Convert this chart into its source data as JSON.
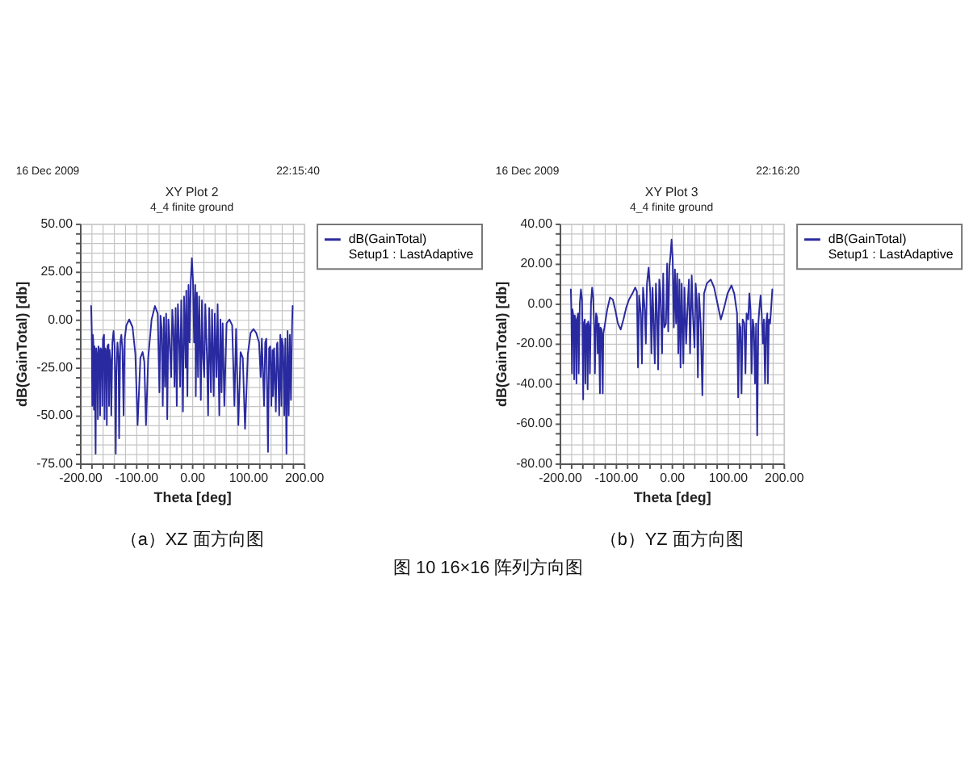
{
  "chart_data": [
    {
      "type": "line",
      "title": "XY Plot 2",
      "subtitle": "4_4 finite ground",
      "xlabel": "Theta [deg]",
      "ylabel": "dB(GainTotal) [db]",
      "annotations": [
        "16 Dec 2009",
        "22:15:40",
        "（a）XZ 面方向图",
        "图 10 16×16 阵列方向图"
      ],
      "series": [
        {
          "name": "dB(GainTotal)\nSetup1 : LastAdaptive",
          "color": "#2a2aa0",
          "x": [
            -180,
            -179,
            -178,
            -177,
            -176,
            -175,
            -174,
            -172,
            -171,
            -169,
            -168,
            -167,
            -165,
            -164,
            -163,
            -161,
            -160,
            -159,
            -157,
            -156,
            -155,
            -153,
            -152,
            -151,
            -149,
            -148,
            -147,
            -145,
            -144,
            -142,
            -140,
            -138,
            -137,
            -136,
            -135,
            -133,
            -131,
            -130,
            -128,
            -126,
            -124,
            -122,
            -120,
            -117,
            -112,
            -106,
            -101,
            -97,
            -92,
            -88,
            -85,
            -82,
            -78,
            -72,
            -66,
            -61,
            -58,
            -56,
            -54,
            -52,
            -50,
            -48,
            -46,
            -44,
            -42,
            -40,
            -37,
            -35,
            -33,
            -31,
            -29,
            -27,
            -25,
            -23,
            -21,
            -19,
            -16,
            -14,
            -11,
            -10,
            -8,
            -6,
            -4,
            -2,
            0,
            2,
            4,
            6,
            7,
            9,
            11,
            13,
            16,
            18,
            20,
            22,
            24,
            27,
            29,
            31,
            34,
            36,
            39,
            41,
            44,
            46,
            49,
            51,
            53,
            55,
            58,
            62,
            67,
            72,
            76,
            79,
            83,
            87,
            91,
            95,
            100,
            105,
            110,
            115,
            120,
            123,
            125,
            129,
            131,
            133,
            136,
            138,
            140,
            142,
            144,
            145,
            147,
            150,
            152,
            153,
            156,
            158,
            160,
            161,
            163,
            165,
            167,
            169,
            171,
            173,
            175,
            177,
            179,
            180
          ],
          "values": [
            7,
            -5,
            -45,
            -8,
            -12,
            -47,
            -14,
            -70,
            -15,
            -20,
            -52,
            -14,
            -18,
            -50,
            -15,
            -17,
            -45,
            -10,
            -8,
            -52,
            -15,
            -17,
            -55,
            -14,
            -13,
            -45,
            -16,
            -22,
            -50,
            -12,
            -6,
            -14,
            -40,
            -70,
            -30,
            -12,
            -20,
            -62,
            -12,
            -8,
            -16,
            -50,
            -10,
            -3,
            0,
            -4,
            -18,
            -55,
            -20,
            -17,
            -22,
            -55,
            -20,
            0,
            7,
            3,
            -38,
            2,
            -5,
            -45,
            1,
            -35,
            3,
            -52,
            0,
            -10,
            -30,
            5,
            -5,
            -35,
            6,
            -45,
            8,
            -10,
            -35,
            10,
            -48,
            12,
            -25,
            15,
            -40,
            18,
            -12,
            20,
            32,
            20,
            -12,
            18,
            -40,
            14,
            -30,
            12,
            -42,
            10,
            -20,
            -30,
            8,
            -20,
            -50,
            6,
            -38,
            5,
            -40,
            3,
            -30,
            8,
            -50,
            0,
            -38,
            -2,
            -45,
            -2,
            0,
            -3,
            -45,
            -5,
            -55,
            -17,
            -20,
            -57,
            -18,
            -7,
            -5,
            -7,
            -12,
            -30,
            -10,
            -45,
            -12,
            -10,
            -69,
            -15,
            -14,
            -45,
            -16,
            -40,
            -15,
            -48,
            -13,
            -12,
            -50,
            -8,
            -45,
            -10,
            -14,
            -50,
            -10,
            -70,
            -6,
            -50,
            -8,
            -42,
            -3,
            7
          ]
        }
      ],
      "xlim": [
        -200,
        200
      ],
      "xticks": [
        {
          "value": -200,
          "label": "-200.00"
        },
        {
          "value": -180,
          "label": null
        },
        {
          "value": -160,
          "label": null
        },
        {
          "value": -140,
          "label": null
        },
        {
          "value": -120,
          "label": null
        },
        {
          "value": -100,
          "label": "-100.00"
        },
        {
          "value": -80,
          "label": null
        },
        {
          "value": -60,
          "label": null
        },
        {
          "value": -40,
          "label": null
        },
        {
          "value": -20,
          "label": null
        },
        {
          "value": 0,
          "label": "0.00"
        },
        {
          "value": 20,
          "label": null
        },
        {
          "value": 40,
          "label": null
        },
        {
          "value": 60,
          "label": null
        },
        {
          "value": 80,
          "label": null
        },
        {
          "value": 100,
          "label": "100.00"
        },
        {
          "value": 120,
          "label": null
        },
        {
          "value": 140,
          "label": null
        },
        {
          "value": 160,
          "label": null
        },
        {
          "value": 180,
          "label": null
        },
        {
          "value": 200,
          "label": "200.00"
        }
      ],
      "ylim": [
        -75,
        50
      ],
      "yticks": [
        {
          "value": -75,
          "label": "-75.00"
        },
        {
          "value": -70,
          "label": null
        },
        {
          "value": -65,
          "label": null
        },
        {
          "value": -60,
          "label": null
        },
        {
          "value": -55,
          "label": null
        },
        {
          "value": -50,
          "label": "-50.00"
        },
        {
          "value": -45,
          "label": null
        },
        {
          "value": -40,
          "label": null
        },
        {
          "value": -35,
          "label": null
        },
        {
          "value": -30,
          "label": null
        },
        {
          "value": -25,
          "label": "-25.00"
        },
        {
          "value": -20,
          "label": null
        },
        {
          "value": -15,
          "label": null
        },
        {
          "value": -10,
          "label": null
        },
        {
          "value": -5,
          "label": null
        },
        {
          "value": 0,
          "label": "0.00"
        },
        {
          "value": 5,
          "label": null
        },
        {
          "value": 10,
          "label": null
        },
        {
          "value": 15,
          "label": null
        },
        {
          "value": 20,
          "label": null
        },
        {
          "value": 25,
          "label": "25.00"
        },
        {
          "value": 30,
          "label": null
        },
        {
          "value": 35,
          "label": null
        },
        {
          "value": 40,
          "label": null
        },
        {
          "value": 45,
          "label": null
        },
        {
          "value": 50,
          "label": "50.00"
        }
      ],
      "grid": true,
      "legend": "right"
    },
    {
      "type": "line",
      "title": "XY Plot 3",
      "subtitle": "4_4 finite ground",
      "xlabel": "Theta [deg]",
      "ylabel": "dB(GainTotal) [db]",
      "annotations": [
        "16 Dec 2009",
        "22:16:20",
        "（b）YZ 面方向图"
      ],
      "series": [
        {
          "name": "dB(GainTotal)\nSetup1 : LastAdaptive",
          "color": "#2a2aa0",
          "x": [
            -180,
            -179,
            -178,
            -177,
            -175,
            -174,
            -173,
            -171,
            -170,
            -169,
            -167,
            -166,
            -164,
            -162,
            -160,
            -159,
            -158,
            -157,
            -155,
            -154,
            -153,
            -151,
            -150,
            -149,
            -147,
            -146,
            -144,
            -142,
            -140,
            -138,
            -137,
            -135,
            -133,
            -132,
            -130,
            -128,
            -127,
            -125,
            -123,
            -122,
            -120,
            -115,
            -110,
            -105,
            -100,
            -96,
            -91,
            -86,
            -81,
            -76,
            -70,
            -65,
            -62,
            -60,
            -58,
            -55,
            -53,
            -51,
            -48,
            -46,
            -44,
            -41,
            -38,
            -36,
            -34,
            -32,
            -30,
            -28,
            -26,
            -24,
            -22,
            -20,
            -17,
            -15,
            -13,
            -10,
            -8,
            -6,
            -4,
            -2,
            0,
            2,
            4,
            6,
            8,
            10,
            12,
            14,
            16,
            18,
            21,
            23,
            26,
            28,
            31,
            33,
            36,
            38,
            41,
            43,
            45,
            47,
            49,
            52,
            55,
            58,
            63,
            70,
            76,
            82,
            88,
            94,
            100,
            107,
            112,
            117,
            119,
            121,
            123,
            125,
            127,
            130,
            132,
            134,
            137,
            139,
            141,
            143,
            145,
            147,
            149,
            151,
            153,
            155,
            157,
            159,
            161,
            163,
            165,
            167,
            169,
            171,
            172,
            174,
            176,
            178,
            180
          ],
          "values": [
            7,
            -5,
            -35,
            -3,
            -8,
            -38,
            -6,
            -10,
            -40,
            -8,
            -5,
            -35,
            0,
            7,
            2,
            -20,
            -48,
            -10,
            -8,
            -40,
            -12,
            -10,
            -43,
            -9,
            -12,
            -35,
            0,
            8,
            3,
            -15,
            -35,
            -5,
            -7,
            -25,
            -10,
            -45,
            -12,
            -13,
            -45,
            -15,
            -12,
            -3,
            3,
            2,
            -4,
            -10,
            -13,
            -8,
            -2,
            2,
            5,
            8,
            6,
            -32,
            4,
            -5,
            -30,
            8,
            -3,
            -20,
            10,
            18,
            5,
            -25,
            8,
            -10,
            -30,
            10,
            -5,
            -33,
            12,
            5,
            -25,
            15,
            -12,
            -10,
            20,
            -14,
            18,
            24,
            32,
            22,
            -12,
            17,
            -10,
            15,
            -25,
            12,
            -32,
            10,
            -30,
            8,
            -20,
            -5,
            12,
            -25,
            14,
            -5,
            -22,
            10,
            2,
            -37,
            5,
            -10,
            -46,
            5,
            10,
            12,
            8,
            0,
            -8,
            -2,
            5,
            9,
            5,
            -5,
            -47,
            -10,
            -12,
            -45,
            -8,
            -10,
            -35,
            -5,
            -8,
            5,
            -3,
            -35,
            -8,
            -12,
            -40,
            -10,
            -66,
            -10,
            -2,
            4,
            -5,
            -20,
            -8,
            -40,
            -10,
            -5,
            -40,
            -8,
            -10,
            -2,
            7
          ]
        }
      ],
      "xlim": [
        -200,
        200
      ],
      "xticks": [
        {
          "value": -200,
          "label": "-200.00"
        },
        {
          "value": -180,
          "label": null
        },
        {
          "value": -160,
          "label": null
        },
        {
          "value": -140,
          "label": null
        },
        {
          "value": -120,
          "label": null
        },
        {
          "value": -100,
          "label": "-100.00"
        },
        {
          "value": -80,
          "label": null
        },
        {
          "value": -60,
          "label": null
        },
        {
          "value": -40,
          "label": null
        },
        {
          "value": -20,
          "label": null
        },
        {
          "value": 0,
          "label": "0.00"
        },
        {
          "value": 20,
          "label": null
        },
        {
          "value": 40,
          "label": null
        },
        {
          "value": 60,
          "label": null
        },
        {
          "value": 80,
          "label": null
        },
        {
          "value": 100,
          "label": "100.00"
        },
        {
          "value": 120,
          "label": null
        },
        {
          "value": 140,
          "label": null
        },
        {
          "value": 160,
          "label": null
        },
        {
          "value": 180,
          "label": null
        },
        {
          "value": 200,
          "label": "200.00"
        }
      ],
      "ylim": [
        -80,
        40
      ],
      "yticks": [
        {
          "value": -80,
          "label": "-80.00"
        },
        {
          "value": -75,
          "label": null
        },
        {
          "value": -70,
          "label": null
        },
        {
          "value": -65,
          "label": null
        },
        {
          "value": -60,
          "label": "-60.00"
        },
        {
          "value": -55,
          "label": null
        },
        {
          "value": -50,
          "label": null
        },
        {
          "value": -45,
          "label": null
        },
        {
          "value": -40,
          "label": "-40.00"
        },
        {
          "value": -35,
          "label": null
        },
        {
          "value": -30,
          "label": null
        },
        {
          "value": -25,
          "label": null
        },
        {
          "value": -20,
          "label": "-20.00"
        },
        {
          "value": -15,
          "label": null
        },
        {
          "value": -10,
          "label": null
        },
        {
          "value": -5,
          "label": null
        },
        {
          "value": 0,
          "label": "0.00"
        },
        {
          "value": 5,
          "label": null
        },
        {
          "value": 10,
          "label": null
        },
        {
          "value": 15,
          "label": null
        },
        {
          "value": 20,
          "label": "20.00"
        },
        {
          "value": 25,
          "label": null
        },
        {
          "value": 30,
          "label": null
        },
        {
          "value": 35,
          "label": null
        },
        {
          "value": 40,
          "label": "40.00"
        }
      ],
      "grid": true,
      "legend": "right"
    }
  ]
}
